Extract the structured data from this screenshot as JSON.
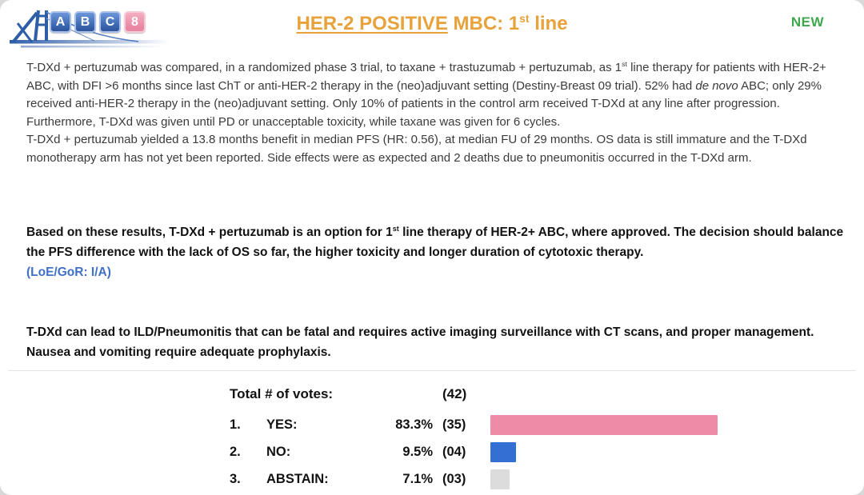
{
  "logo": {
    "letters": [
      "A",
      "B",
      "C",
      "8"
    ],
    "tile_blue_color": "#3a66b0",
    "tile_pink_color": "#e887a4",
    "bridge_color": "#2f5ea8"
  },
  "header": {
    "title_underlined": "HER-2 POSITIVE",
    "title_rest_1": " MBC: 1",
    "title_sup": "st",
    "title_rest_2": " line",
    "title_color": "#e8a23b",
    "new_label": "NEW",
    "new_color": "#3fa84c"
  },
  "body": {
    "p1": {
      "a": "T-DXd + pertuzumab was compared, in a randomized phase 3 trial, to taxane + trastuzumab + pertuzumab, as 1",
      "sup": "st",
      "b": " line therapy  for patients with HER-2+ ABC, with DFI >6 months since last ChT or anti-HER-2 therapy in the (neo)adjuvant setting (Destiny-Breast 09 trial). 52% had ",
      "italic": "de novo",
      "c": " ABC; only 29% received anti-HER-2 therapy in the (neo)adjuvant setting. Only 10% of patients in the control arm received T-DXd at any line after progression. Furthermore, T-DXd was given until PD or unacceptable toxicity, while taxane was given for 6 cycles."
    },
    "p2": "T-DXd + pertuzumab yielded a 13.8 months benefit in median PFS (HR: 0.56), at median FU of 29 months. OS data is still immature and the T-DXd monotherapy arm has not yet been reported. Side effects were as expected and 2 deaths due to pneumonitis occurred in the T-DXd arm."
  },
  "recommendation": {
    "a": "Based on these results, T-DXd + pertuzumab is an option for 1",
    "sup": "st",
    "b": " line therapy of HER-2+ ABC, where approved. The decision should balance the PFS difference with the lack of OS so far, the higher toxicity and longer duration of cytotoxic therapy.",
    "loe": "(LoE/GoR: I/A)",
    "loe_color": "#4170c8"
  },
  "warning": "T-DXd can lead to ILD/Pneumonitis that can be fatal and requires active imaging surveillance with CT scans, and proper management. Nausea and vomiting require adequate prophylaxis.",
  "votes": {
    "total_label": "Total # of votes:",
    "total_count": "(42)",
    "rows": [
      {
        "num": "1.",
        "label": "YES:",
        "pct": "83.3%",
        "count": "(35)",
        "pct_value": 83.3,
        "color": "#ee8ca8"
      },
      {
        "num": "2.",
        "label": "NO:",
        "pct": "9.5%",
        "count": "(04)",
        "pct_value": 9.5,
        "color": "#3470d4"
      },
      {
        "num": "3.",
        "label": "ABSTAIN:",
        "pct": "7.1%",
        "count": "(03)",
        "pct_value": 7.1,
        "color": "#dcdcdc"
      }
    ]
  }
}
